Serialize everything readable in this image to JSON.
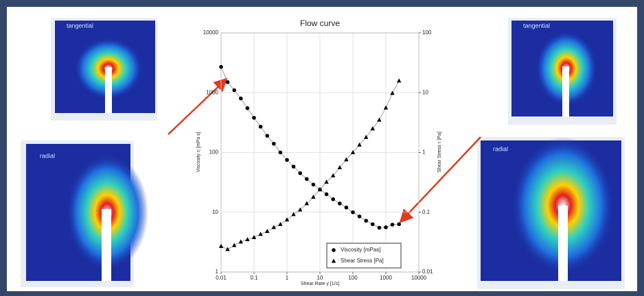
{
  "chart_data": {
    "type": "line",
    "title": "Flow curve",
    "x_label": "Shear Rate γ̇ [1/s]",
    "y_label": "Viscosity η [mPa s]",
    "y2_label": "Shear Stress τ [Pa]",
    "log_x": true,
    "log_y": true,
    "grid": true,
    "legend": "lower right",
    "x": [
      0.01,
      0.0158,
      0.0251,
      0.0398,
      0.0631,
      0.1,
      0.158,
      0.251,
      0.398,
      0.631,
      1,
      1.58,
      2.51,
      3.98,
      6.31,
      10,
      15.8,
      25.1,
      39.8,
      63.1,
      100,
      158,
      251,
      398,
      631,
      1000,
      1580,
      2510
    ],
    "series": [
      {
        "name": "Viscosity [mPas]",
        "color": "#000000",
        "marker": "circle",
        "values": [
          2700,
          1500,
          1100,
          800,
          550,
          380,
          270,
          190,
          140,
          100,
          75,
          58,
          45,
          36,
          29,
          24,
          20,
          16.5,
          14,
          12,
          10,
          8.5,
          7.2,
          6.3,
          5.5,
          5.6,
          6.2,
          6.3
        ]
      },
      {
        "name": "Shear Stress [Pa]",
        "color": "#000000",
        "marker": "triangle",
        "axis": "y2",
        "values": [
          0.027,
          0.024,
          0.028,
          0.032,
          0.035,
          0.038,
          0.043,
          0.048,
          0.056,
          0.063,
          0.075,
          0.092,
          0.11,
          0.14,
          0.18,
          0.24,
          0.32,
          0.41,
          0.56,
          0.76,
          1.0,
          1.34,
          1.8,
          2.5,
          3.5,
          5.6,
          9.8,
          15.8
        ]
      }
    ],
    "xlim": [
      0.01,
      10000
    ],
    "xticks": [
      0.01,
      0.1,
      1,
      10,
      100,
      1000,
      10000
    ],
    "ylim": [
      1,
      10000
    ],
    "yticks": [
      1,
      10,
      100,
      1000,
      10000
    ],
    "y2lim": [
      0.01,
      100
    ],
    "y2ticks": [
      0.01,
      0.1,
      1,
      10,
      100
    ]
  },
  "images": [
    {
      "label": "tangential"
    },
    {
      "label": "radial"
    },
    {
      "label": "tangential"
    },
    {
      "label": "radial"
    }
  ]
}
